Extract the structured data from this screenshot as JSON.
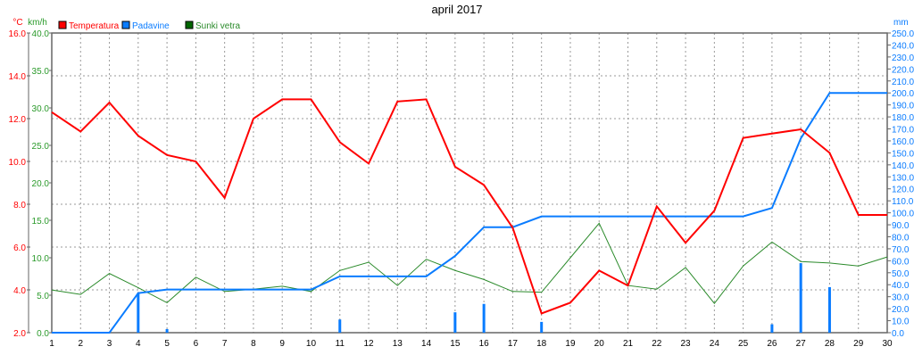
{
  "chart_data": {
    "type": "line",
    "title": "april 2017",
    "x": [
      1,
      2,
      3,
      4,
      5,
      6,
      7,
      8,
      9,
      10,
      11,
      12,
      13,
      14,
      15,
      16,
      17,
      18,
      19,
      20,
      21,
      22,
      23,
      24,
      25,
      26,
      27,
      28,
      29,
      30
    ],
    "axes": {
      "temperature": {
        "unit": "°C",
        "range": [
          2.0,
          16.0
        ],
        "ticks": [
          "2.0",
          "4.0",
          "6.0",
          "8.0",
          "10.0",
          "12.0",
          "14.0",
          "16.0"
        ],
        "color": "#ff0000"
      },
      "wind": {
        "unit": "km/h",
        "range": [
          0.0,
          40.0
        ],
        "ticks": [
          "0.0",
          "5.0",
          "10.0",
          "15.0",
          "20.0",
          "25.0",
          "30.0",
          "35.0",
          "40.0"
        ],
        "color": "#2a9a2a"
      },
      "precipitation": {
        "unit": "mm",
        "range": [
          0.0,
          250.0
        ],
        "step": 10,
        "color": "#0a7cff"
      }
    },
    "grid": true,
    "legend_placement": "top-left",
    "series": [
      {
        "name": "Temperatura",
        "axis": "temperature",
        "color": "#ff0000",
        "values": [
          12.3,
          11.4,
          12.75,
          11.2,
          10.3,
          10.0,
          8.3,
          12.0,
          12.9,
          12.9,
          10.9,
          9.9,
          12.8,
          12.9,
          9.75,
          8.9,
          6.9,
          2.9,
          3.4,
          4.9,
          4.2,
          7.9,
          6.2,
          7.7,
          11.1,
          11.3,
          11.5,
          10.4,
          7.5,
          7.5
        ]
      },
      {
        "name": "Padavine",
        "axis": "precipitation",
        "color": "#0a7cff",
        "cumulative": [
          0,
          0,
          0,
          33,
          36,
          36,
          36,
          36,
          36,
          36,
          47,
          47,
          47,
          47,
          64,
          88,
          88,
          97,
          97,
          97,
          97,
          97,
          97,
          97,
          97,
          104,
          162,
          200,
          200,
          200
        ],
        "daily": [
          0,
          0,
          0,
          33,
          3,
          0,
          0,
          0,
          0,
          0,
          11,
          0,
          0,
          0,
          17,
          24,
          0,
          9,
          0,
          0,
          0,
          0,
          0,
          0,
          0,
          7,
          58,
          38,
          0,
          0
        ]
      },
      {
        "name": "Sunki vetra",
        "axis": "wind",
        "color": "#2a8a2a",
        "values": [
          5.7,
          5.1,
          7.9,
          6.0,
          4.0,
          7.4,
          5.5,
          5.8,
          6.2,
          5.5,
          8.3,
          9.4,
          6.3,
          9.8,
          8.3,
          7.1,
          5.5,
          5.4,
          10.0,
          14.6,
          6.3,
          5.8,
          8.7,
          3.9,
          8.9,
          12.1,
          9.5,
          9.3,
          8.9,
          10.1
        ]
      }
    ]
  }
}
